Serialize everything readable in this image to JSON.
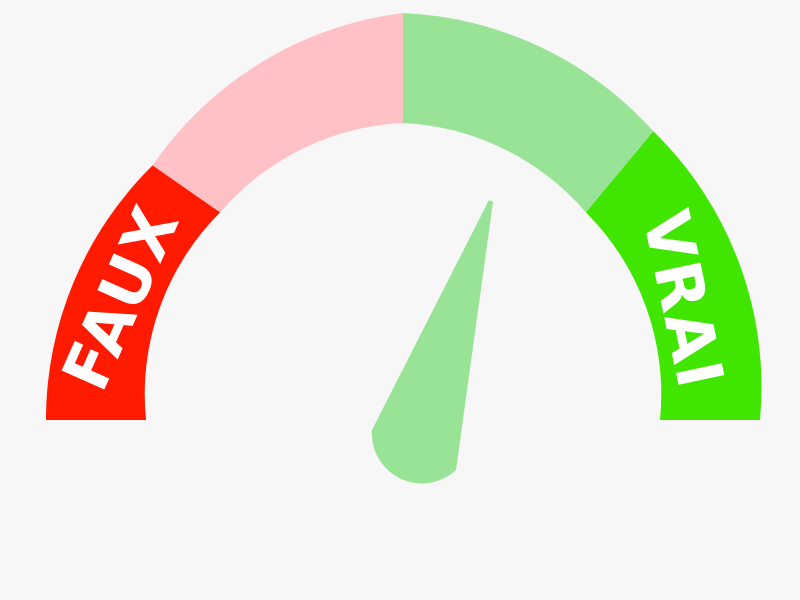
{
  "gauge": {
    "labels": {
      "false": "FAUX",
      "true": "VRAI"
    },
    "needle_value": 0.55,
    "colors": {
      "background": "#f7f7f7",
      "false_strong": "#ff1a00",
      "false_light": "#ffc0c6",
      "true_light": "#99e396",
      "true_strong": "#41e600",
      "needle": "#99e396",
      "label_text": "#ffffff"
    }
  }
}
